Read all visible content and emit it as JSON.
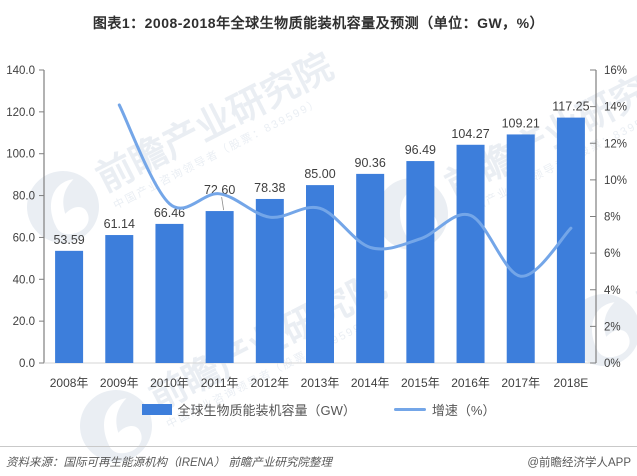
{
  "title": "图表1：2008-2018年全球生物质能装机容量及预测（单位：GW，%）",
  "chart_data": {
    "type": "bar",
    "combo": "bar+line",
    "categories": [
      "2008年",
      "2009年",
      "2010年",
      "2011年",
      "2012年",
      "2013年",
      "2014年",
      "2015年",
      "2016年",
      "2017年",
      "2018E"
    ],
    "series": [
      {
        "name": "全球生物质能装机容量（GW）",
        "type": "bar",
        "axis": "left",
        "unit": "GW",
        "color": "#3d7edb",
        "values": [
          53.59,
          61.14,
          66.46,
          72.6,
          78.38,
          85.0,
          90.36,
          96.49,
          104.27,
          109.21,
          117.25
        ],
        "value_labels": [
          "53.59",
          "61.14",
          "66.46",
          "72.60",
          "78.38",
          "85.00",
          "90.36",
          "96.49",
          "104.27",
          "109.21",
          "117.25"
        ]
      },
      {
        "name": "增速（%）",
        "type": "line",
        "axis": "right",
        "unit": "%",
        "color": "#74a6e8",
        "values": [
          null,
          14.09,
          8.7,
          9.24,
          7.96,
          8.45,
          6.31,
          6.78,
          8.06,
          4.74,
          7.36
        ]
      }
    ],
    "left_axis": {
      "min": 0,
      "max": 140,
      "tick_labels": [
        "140.0",
        "120.0",
        "100.0",
        "80.0",
        "60.0",
        "40.0",
        "20.0",
        "0.0"
      ]
    },
    "right_axis": {
      "min": 0,
      "max": 16,
      "tick_labels": [
        "16%",
        "14%",
        "12%",
        "10%",
        "8%",
        "6%",
        "4%",
        "2%",
        "0%"
      ]
    },
    "grid": "off",
    "legend_position": "bottom"
  },
  "watermark": {
    "text": "前瞻产业研究院",
    "subtext": "中国产业咨询领导者（股票：839599）"
  },
  "footer": {
    "source": "资料来源：国际可再生能源机构（IRENA） 前瞻产业研究院整理",
    "credit": "@前瞻经济学人APP"
  },
  "colors": {
    "bar": "#3d7edb",
    "line": "#74a6e8",
    "axis": "#7f7f7f",
    "baseline": "#d6d6d6",
    "tick_text": "#3f3f3f",
    "value_text": "#3f3f3f",
    "watermark": "#d9e1eb"
  }
}
